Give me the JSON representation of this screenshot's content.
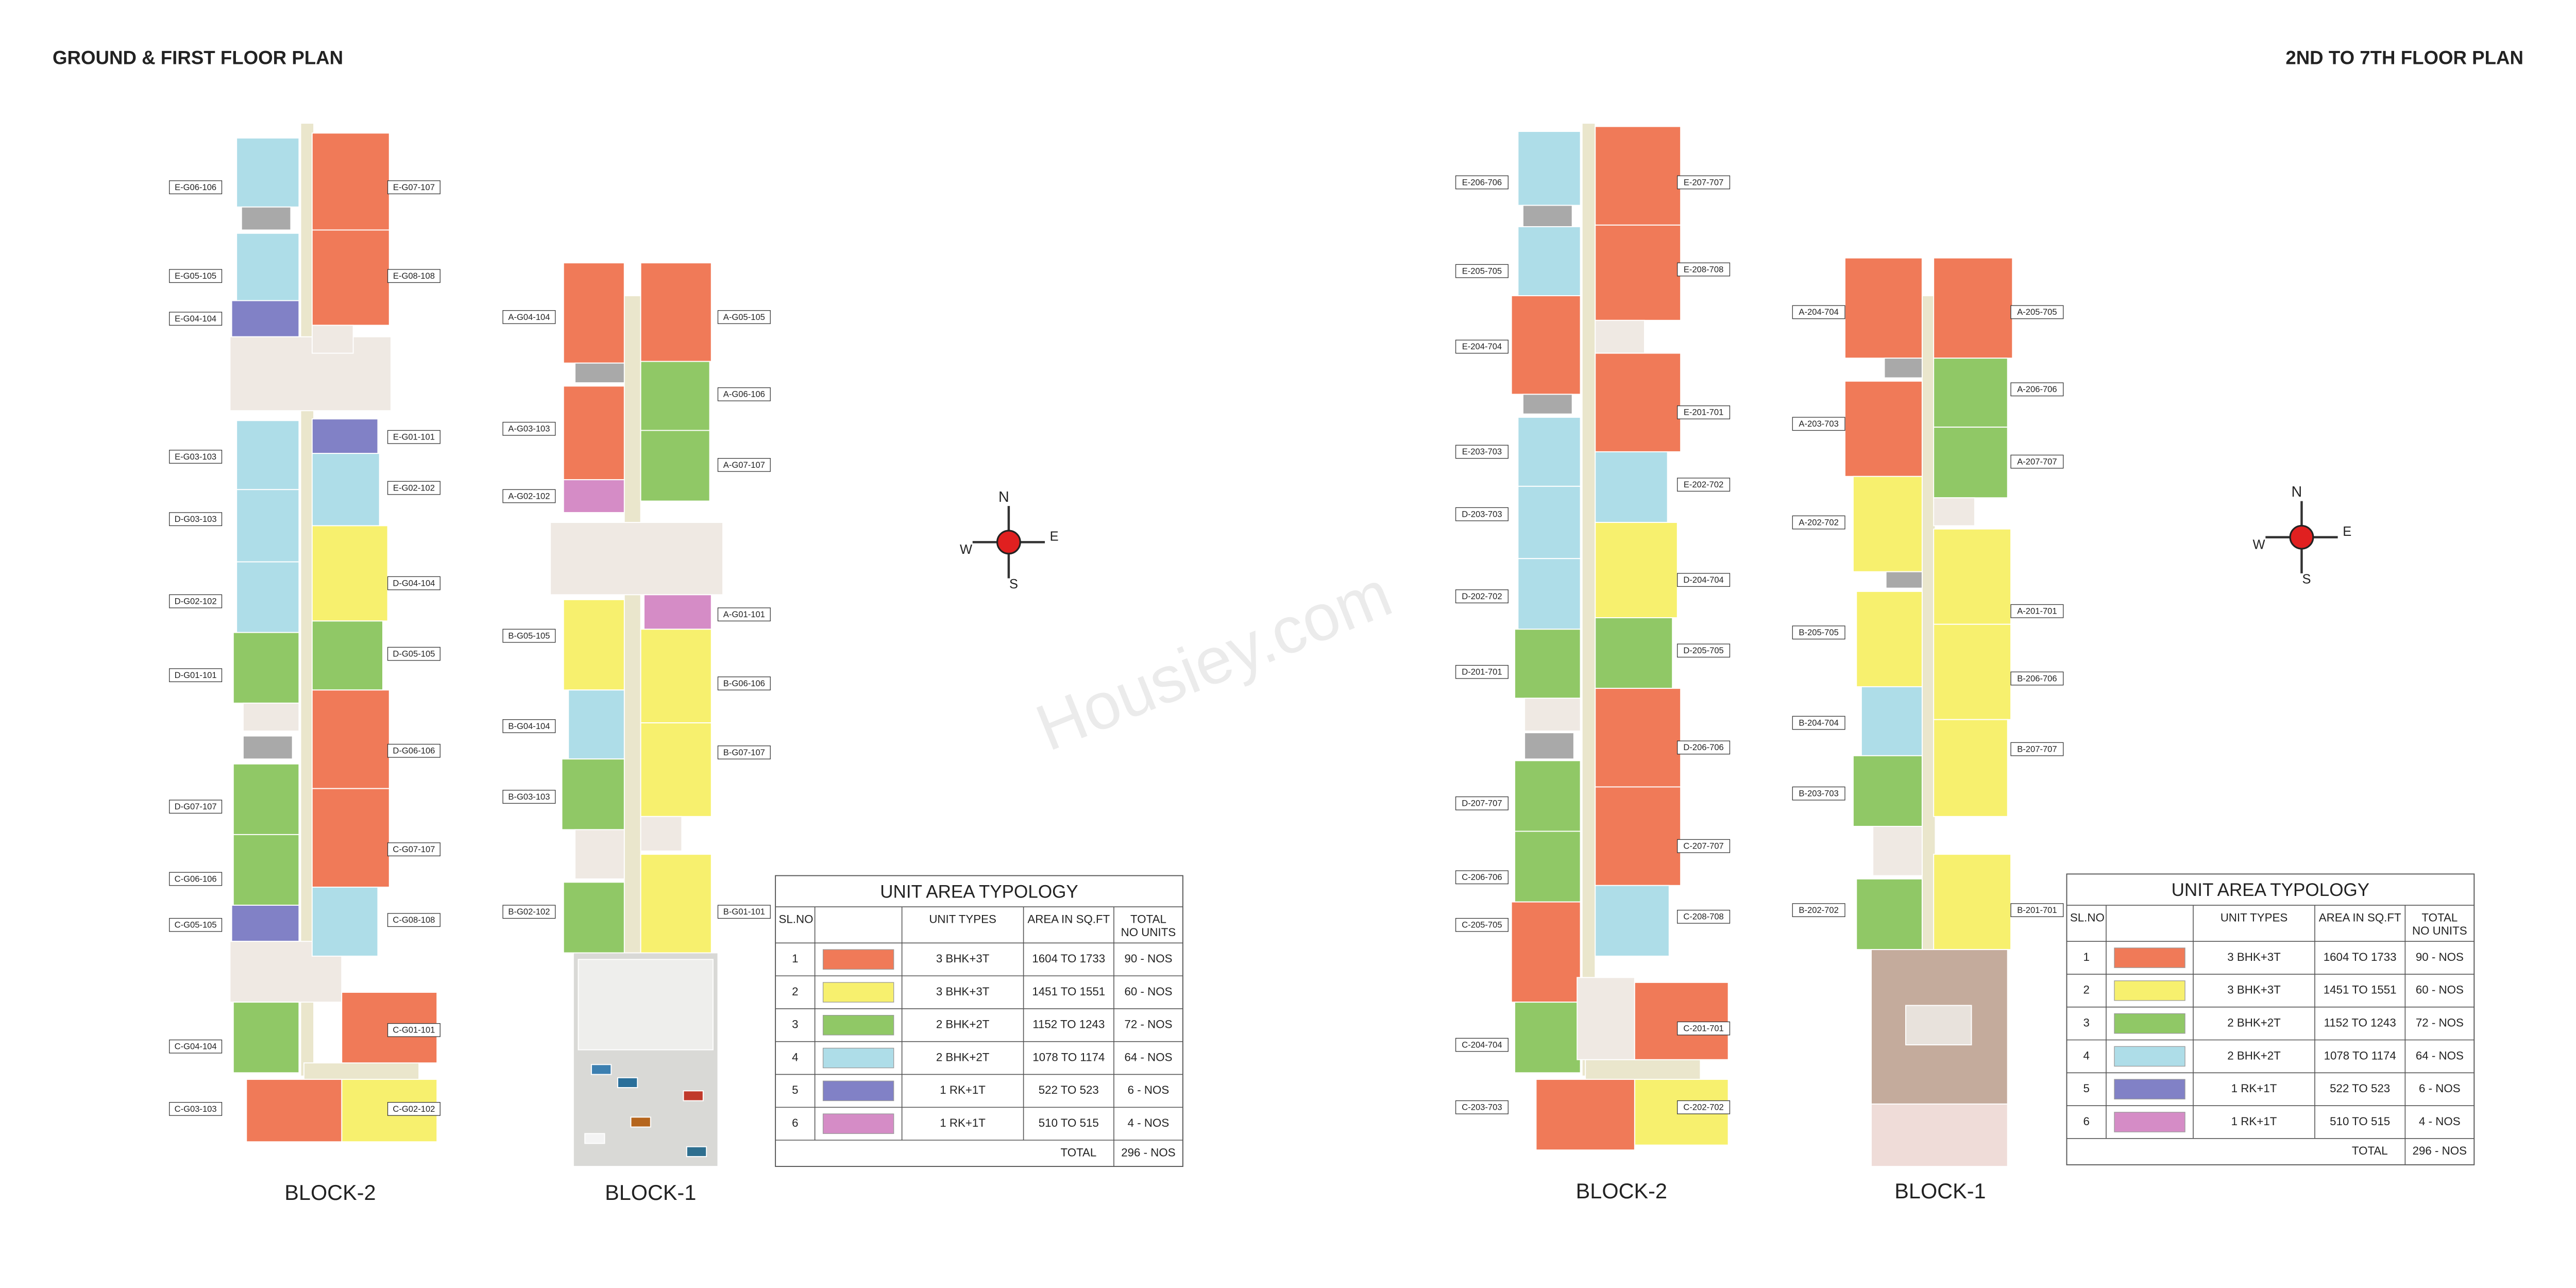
{
  "header": {
    "left_title": "GROUND & FIRST FLOOR PLAN",
    "right_title": "2ND TO 7TH FLOOR PLAN"
  },
  "plans": [
    {
      "blocks": [
        {
          "name": "BLOCK-2",
          "left_units": [
            "E-G06-106",
            "E-G05-105",
            "E-G04-104",
            "E-G03-103",
            "D-G03-103",
            "D-G02-102",
            "D-G01-101",
            "D-G07-107",
            "C-G06-106",
            "C-G05-105",
            "C-G04-104",
            "C-G03-103"
          ],
          "right_units": [
            "E-G07-107",
            "E-G08-108",
            "E-G01-101",
            "E-G02-102",
            "D-G04-104",
            "D-G05-105",
            "D-G06-106",
            "C-G07-107",
            "C-G08-108",
            "C-G01-101",
            "C-G02-102"
          ]
        },
        {
          "name": "BLOCK-1",
          "left_units": [
            "A-G04-104",
            "A-G03-103",
            "A-G02-102",
            "B-G05-105",
            "B-G04-104",
            "B-G03-103",
            "B-G02-102"
          ],
          "right_units": [
            "A-G05-105",
            "A-G06-106",
            "A-G07-107",
            "A-G01-101",
            "B-G06-106",
            "B-G07-107",
            "B-G01-101"
          ]
        }
      ]
    },
    {
      "blocks": [
        {
          "name": "BLOCK-2",
          "left_units": [
            "E-206-706",
            "E-205-705",
            "E-204-704",
            "E-203-703",
            "D-203-703",
            "D-202-702",
            "D-201-701",
            "D-207-707",
            "C-206-706",
            "C-205-705",
            "C-204-704",
            "C-203-703"
          ],
          "right_units": [
            "E-207-707",
            "E-208-708",
            "E-201-701",
            "E-202-702",
            "D-204-704",
            "D-205-705",
            "D-206-706",
            "C-207-707",
            "C-208-708",
            "C-201-701",
            "C-202-702"
          ]
        },
        {
          "name": "BLOCK-1",
          "left_units": [
            "A-204-704",
            "A-203-703",
            "A-202-702",
            "B-205-705",
            "B-204-704",
            "B-203-703",
            "B-202-702"
          ],
          "right_units": [
            "A-205-705",
            "A-206-706",
            "A-207-707",
            "A-201-701",
            "B-206-706",
            "B-207-707",
            "B-201-701"
          ]
        }
      ]
    }
  ],
  "compass": {
    "n": "N",
    "e": "E",
    "s": "S",
    "w": "W"
  },
  "watermark": "Housiey.com",
  "tables": [
    {
      "title": "UNIT AREA TYPOLOGY",
      "headers": [
        "SL.NO",
        "UNIT TYPES",
        "AREA IN SQ.FT",
        "TOTAL",
        "NO UNITS"
      ],
      "rows": [
        {
          "sl": 1,
          "color": "#f07a58",
          "type": "3 BHK+3T",
          "area": "1604 TO 1733",
          "total": "90 - NOS"
        },
        {
          "sl": 2,
          "color": "#f7f06e",
          "type": "3 BHK+3T",
          "area": "1451 TO 1551",
          "total": "60 - NOS"
        },
        {
          "sl": 3,
          "color": "#90c866",
          "type": "2 BHK+2T",
          "area": "1152 TO 1243",
          "total": "72 - NOS"
        },
        {
          "sl": 4,
          "color": "#aedde8",
          "type": "2 BHK+2T",
          "area": "1078 TO 1174",
          "total": "64 - NOS"
        },
        {
          "sl": 5,
          "color": "#8181c6",
          "type": "1 RK+1T",
          "area": "522 TO 523",
          "total": "6 - NOS"
        },
        {
          "sl": 6,
          "color": "#d58cc6",
          "type": "1 RK+1T",
          "area": "510 TO 515",
          "total": "4 - NOS"
        }
      ],
      "total_label": "TOTAL",
      "total_value": "296 - NOS"
    },
    {
      "title": "UNIT AREA TYPOLOGY",
      "headers": [
        "SL.NO",
        "UNIT TYPES",
        "AREA IN SQ.FT",
        "TOTAL",
        "NO UNITS"
      ],
      "rows": [
        {
          "sl": 1,
          "color": "#f07a58",
          "type": "3 BHK+3T",
          "area": "1604 TO 1733",
          "total": "90 - NOS"
        },
        {
          "sl": 2,
          "color": "#f7f06e",
          "type": "3 BHK+3T",
          "area": "1451 TO 1551",
          "total": "60 - NOS"
        },
        {
          "sl": 3,
          "color": "#90c866",
          "type": "2 BHK+2T",
          "area": "1152 TO 1243",
          "total": "72 - NOS"
        },
        {
          "sl": 4,
          "color": "#aedde8",
          "type": "2 BHK+2T",
          "area": "1078 TO 1174",
          "total": "64 - NOS"
        },
        {
          "sl": 5,
          "color": "#8181c6",
          "type": "1 RK+1T",
          "area": "522 TO 523",
          "total": "6 - NOS"
        },
        {
          "sl": 6,
          "color": "#d58cc6",
          "type": "1 RK+1T",
          "area": "510 TO 515",
          "total": "4 - NOS"
        }
      ],
      "total_label": "TOTAL",
      "total_value": "296 - NOS"
    }
  ]
}
